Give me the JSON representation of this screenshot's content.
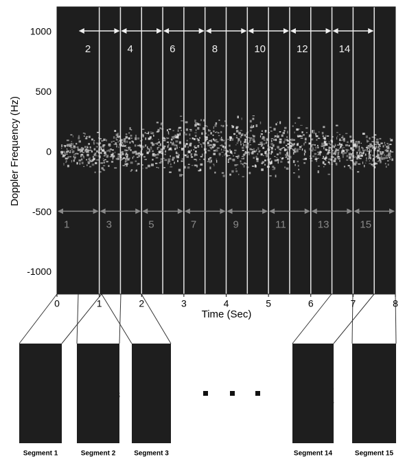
{
  "chart_data": {
    "type": "spectrogram",
    "ylabel": "Doppler Frequency (Hz)",
    "xlabel": "Time (Sec)",
    "xlim": [
      0,
      8
    ],
    "ylim": [
      -1180,
      1210
    ],
    "xticks": [
      0,
      1,
      2,
      3,
      4,
      5,
      6,
      7,
      8
    ],
    "yticks": [
      1000,
      500,
      0,
      -500,
      -1000
    ],
    "segments": [
      {
        "index": 1,
        "start": 0,
        "end": 1
      },
      {
        "index": 2,
        "start": 0.5,
        "end": 1.5
      },
      {
        "index": 3,
        "start": 1,
        "end": 2
      },
      {
        "index": 4,
        "start": 1.5,
        "end": 2.5
      },
      {
        "index": 5,
        "start": 2,
        "end": 3
      },
      {
        "index": 6,
        "start": 2.5,
        "end": 3.5
      },
      {
        "index": 7,
        "start": 3,
        "end": 4
      },
      {
        "index": 8,
        "start": 3.5,
        "end": 4.5
      },
      {
        "index": 9,
        "start": 4,
        "end": 5
      },
      {
        "index": 10,
        "start": 4.5,
        "end": 5.5
      },
      {
        "index": 11,
        "start": 5,
        "end": 6
      },
      {
        "index": 12,
        "start": 5.5,
        "end": 6.5
      },
      {
        "index": 13,
        "start": 6,
        "end": 7
      },
      {
        "index": 14,
        "start": 6.5,
        "end": 7.5
      },
      {
        "index": 15,
        "start": 7,
        "end": 8
      }
    ],
    "thumbnails": [
      "Segment 1",
      "Segment 2",
      "Segment 3",
      "Segment 14",
      "Segment 15"
    ]
  }
}
